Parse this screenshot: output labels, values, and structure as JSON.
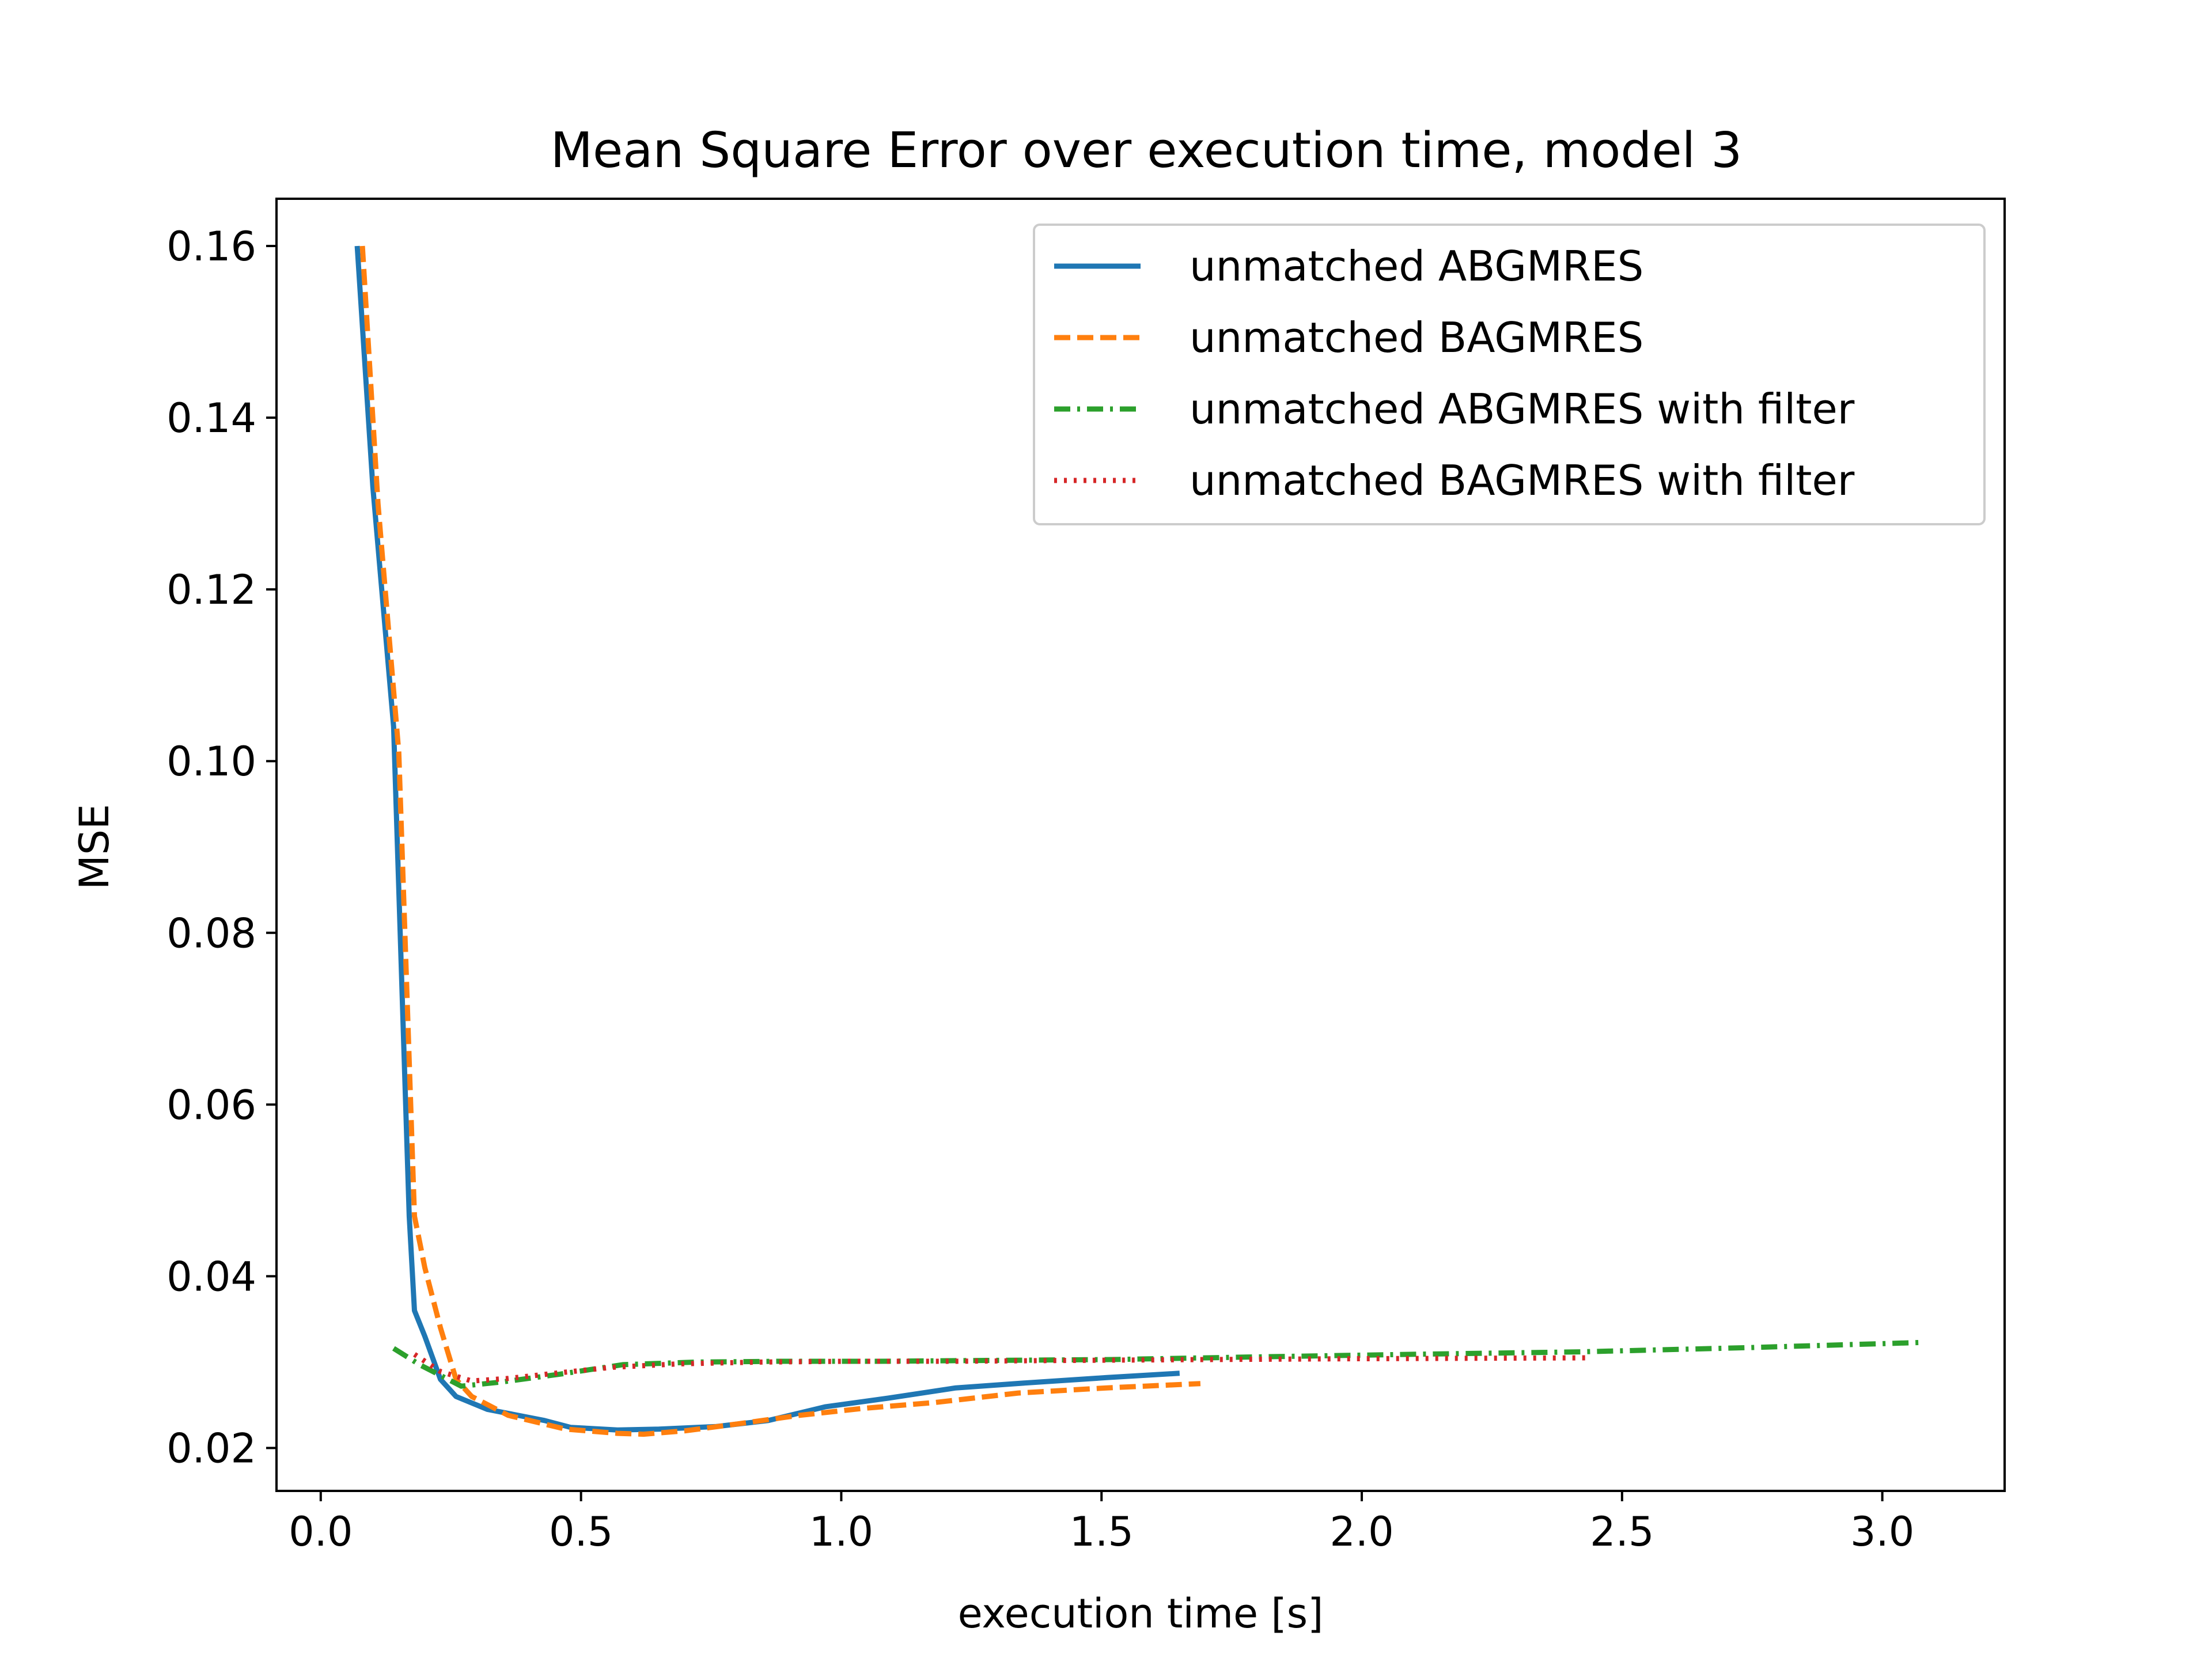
{
  "chart_data": {
    "type": "line",
    "title": "Mean Square Error over execution time, model 3",
    "xlabel": "execution time [s]",
    "ylabel": "MSE",
    "xlim": [
      -0.085,
      3.235
    ],
    "ylim": [
      0.015,
      0.1655
    ],
    "xticks": [
      0.0,
      0.5,
      1.0,
      1.5,
      2.0,
      2.5,
      3.0
    ],
    "xtick_labels": [
      "0.0",
      "0.5",
      "1.0",
      "1.5",
      "2.0",
      "2.5",
      "3.0"
    ],
    "yticks": [
      0.02,
      0.04,
      0.06,
      0.08,
      0.1,
      0.12,
      0.14,
      0.16
    ],
    "ytick_labels": [
      "0.02",
      "0.04",
      "0.06",
      "0.08",
      "0.10",
      "0.12",
      "0.14",
      "0.16"
    ],
    "grid": false,
    "legend_position": "top-right",
    "series": [
      {
        "name": "unmatched ABGMRES",
        "color": "#1f77b4",
        "style": "solid",
        "x": [
          0.07,
          0.1,
          0.14,
          0.17,
          0.18,
          0.2,
          0.23,
          0.26,
          0.32,
          0.43,
          0.48,
          0.57,
          0.65,
          0.76,
          0.86,
          0.97,
          1.09,
          1.22,
          1.36,
          1.51,
          1.65
        ],
        "y": [
          0.16,
          0.132,
          0.104,
          0.047,
          0.036,
          0.033,
          0.028,
          0.026,
          0.0245,
          0.0232,
          0.0224,
          0.0221,
          0.0222,
          0.0225,
          0.0232,
          0.0248,
          0.0258,
          0.027,
          0.0276,
          0.0282,
          0.0287
        ]
      },
      {
        "name": "unmatched BAGMRES",
        "color": "#ff7f0e",
        "style": "dashed",
        "x": [
          0.08,
          0.11,
          0.15,
          0.18,
          0.2,
          0.23,
          0.26,
          0.29,
          0.36,
          0.47,
          0.57,
          0.62,
          0.7,
          0.8,
          0.92,
          1.04,
          1.18,
          1.34,
          1.51,
          1.69
        ],
        "y": [
          0.16,
          0.13,
          0.101,
          0.047,
          0.041,
          0.034,
          0.028,
          0.026,
          0.0238,
          0.0222,
          0.0217,
          0.0216,
          0.022,
          0.0228,
          0.0238,
          0.0246,
          0.0253,
          0.0264,
          0.027,
          0.0275
        ]
      },
      {
        "name": "unmatched ABGMRES with filter",
        "color": "#2ca02c",
        "style": "dashdot",
        "x": [
          0.14,
          0.19,
          0.27,
          0.35,
          0.46,
          0.58,
          0.72,
          0.88,
          1.07,
          1.28,
          1.52,
          1.79,
          2.09,
          2.42,
          2.75,
          3.08
        ],
        "y": [
          0.0316,
          0.0297,
          0.0272,
          0.0277,
          0.0286,
          0.0297,
          0.03,
          0.0301,
          0.0301,
          0.0302,
          0.0303,
          0.0306,
          0.0309,
          0.0312,
          0.0317,
          0.0323
        ]
      },
      {
        "name": "unmatched BAGMRES with filter",
        "color": "#d62728",
        "style": "dotted",
        "x": [
          0.18,
          0.23,
          0.29,
          0.36,
          0.45,
          0.56,
          0.69,
          0.84,
          1.01,
          1.21,
          1.44,
          1.7,
          2.0,
          2.44
        ],
        "y": [
          0.0309,
          0.0289,
          0.0278,
          0.0281,
          0.0287,
          0.0294,
          0.0298,
          0.03,
          0.0301,
          0.0301,
          0.0302,
          0.0303,
          0.0304,
          0.0305
        ]
      }
    ]
  }
}
